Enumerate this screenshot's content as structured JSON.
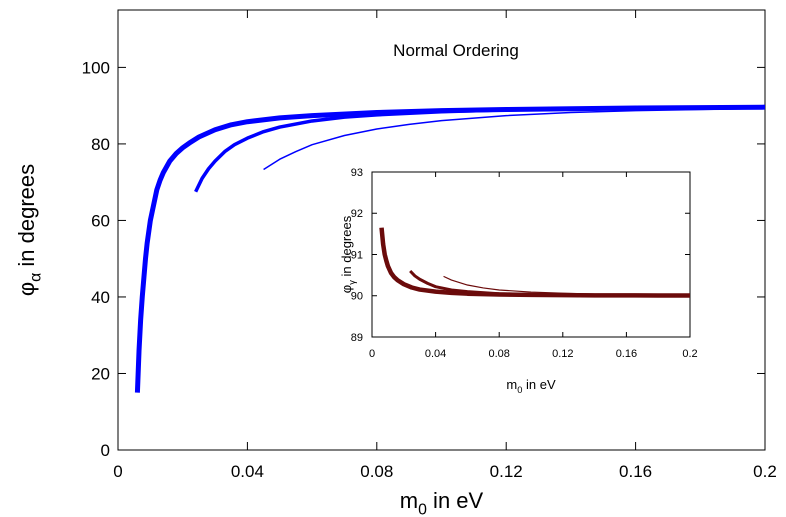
{
  "chart_data": [
    {
      "id": "main",
      "type": "line",
      "title": "Normal Ordering",
      "xlabel": {
        "main": "m",
        "sub": "0",
        "rest": " in eV"
      },
      "ylabel": {
        "main": "φ",
        "sub": "α",
        "rest": "  in degrees"
      },
      "xlim": [
        0,
        0.2
      ],
      "ylim": [
        0,
        115
      ],
      "xticks": [
        0,
        0.04,
        0.08,
        0.12,
        0.16,
        0.2
      ],
      "xtick_labels": [
        "0",
        "0.04",
        "0.08",
        "0.12",
        "0.16",
        "0.2"
      ],
      "yticks": [
        0,
        20,
        40,
        60,
        80,
        100
      ],
      "ytick_labels": [
        "0",
        "20",
        "40",
        "60",
        "80",
        "100"
      ],
      "grid": false,
      "color": "#0000ff",
      "series": [
        {
          "x": [
            0.006,
            0.0065,
            0.007,
            0.0075,
            0.008,
            0.0085,
            0.009,
            0.01,
            0.011,
            0.012,
            0.013,
            0.014,
            0.016,
            0.018,
            0.02,
            0.022,
            0.025,
            0.03,
            0.035,
            0.04,
            0.05,
            0.06,
            0.08,
            0.1,
            0.12,
            0.14,
            0.16,
            0.18,
            0.2
          ],
          "y": [
            15,
            26,
            34,
            40,
            45,
            50,
            54,
            60,
            64,
            68,
            70.5,
            72.5,
            75.5,
            77.5,
            79,
            80.2,
            81.8,
            83.7,
            85,
            85.8,
            86.8,
            87.4,
            88.2,
            88.7,
            89.0,
            89.2,
            89.4,
            89.5,
            89.6
          ],
          "stroke_width": 5
        },
        {
          "x": [
            0.024,
            0.026,
            0.028,
            0.03,
            0.033,
            0.036,
            0.04,
            0.045,
            0.05,
            0.06,
            0.07,
            0.08,
            0.1,
            0.12,
            0.14,
            0.16,
            0.18,
            0.2
          ],
          "y": [
            67.5,
            71,
            73.5,
            75.5,
            78,
            79.8,
            81.5,
            83.2,
            84.4,
            86,
            87,
            87.6,
            88.4,
            88.9,
            89.1,
            89.3,
            89.4,
            89.5
          ],
          "stroke_width": 3.5
        },
        {
          "x": [
            0.045,
            0.05,
            0.055,
            0.06,
            0.07,
            0.08,
            0.09,
            0.1,
            0.12,
            0.14,
            0.16,
            0.18,
            0.2
          ],
          "y": [
            73.3,
            76,
            78,
            79.8,
            82.2,
            83.9,
            85.1,
            86.1,
            87.4,
            88.2,
            88.7,
            89,
            89.3
          ],
          "stroke_width": 1.5
        }
      ]
    },
    {
      "id": "inset",
      "type": "line",
      "title": "",
      "xlabel": {
        "main": "m",
        "sub": "0",
        "rest": " in eV"
      },
      "ylabel": {
        "main": "φ",
        "sub": "γ",
        "rest": " in degrees"
      },
      "xlim": [
        0,
        0.2
      ],
      "ylim": [
        89,
        93
      ],
      "xticks": [
        0,
        0.04,
        0.08,
        0.12,
        0.16,
        0.2
      ],
      "xtick_labels": [
        "0",
        "0.04",
        "0.08",
        "0.12",
        "0.16",
        "0.2"
      ],
      "yticks": [
        89,
        90,
        91,
        92,
        93
      ],
      "ytick_labels": [
        "89",
        "90",
        "91",
        "92",
        "93"
      ],
      "grid": false,
      "color": "#6b0b0b",
      "series": [
        {
          "x": [
            0.006,
            0.007,
            0.008,
            0.009,
            0.01,
            0.012,
            0.014,
            0.016,
            0.02,
            0.025,
            0.03,
            0.04,
            0.05,
            0.06,
            0.08,
            0.1,
            0.12,
            0.14,
            0.16,
            0.18,
            0.2
          ],
          "y": [
            91.65,
            91.25,
            91.0,
            90.85,
            90.72,
            90.55,
            90.45,
            90.38,
            90.28,
            90.2,
            90.15,
            90.1,
            90.07,
            90.05,
            90.03,
            90.02,
            90.015,
            90.01,
            90.01,
            90.005,
            90.005
          ],
          "stroke_width": 4.5
        },
        {
          "x": [
            0.024,
            0.027,
            0.03,
            0.035,
            0.04,
            0.05,
            0.06,
            0.08,
            0.1,
            0.12,
            0.14,
            0.16,
            0.18,
            0.2
          ],
          "y": [
            90.6,
            90.48,
            90.4,
            90.3,
            90.22,
            90.14,
            90.1,
            90.05,
            90.03,
            90.02,
            90.015,
            90.01,
            90.01,
            90.005
          ],
          "stroke_width": 3
        },
        {
          "x": [
            0.045,
            0.05,
            0.06,
            0.07,
            0.08,
            0.1,
            0.12,
            0.14,
            0.16,
            0.18,
            0.2
          ],
          "y": [
            90.47,
            90.38,
            90.26,
            90.19,
            90.14,
            90.09,
            90.06,
            90.04,
            90.03,
            90.02,
            90.02
          ],
          "stroke_width": 1.2
        }
      ]
    }
  ]
}
